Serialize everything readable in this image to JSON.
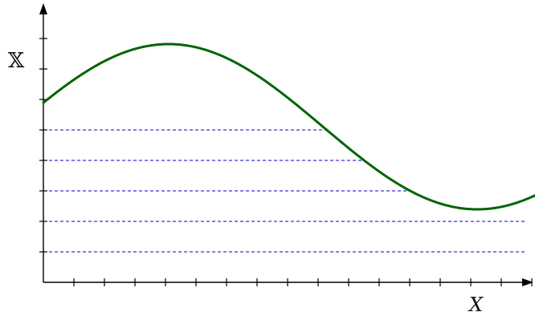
{
  "labels": {
    "y_axis": "𝕏",
    "x_axis": "X"
  },
  "colors": {
    "axis": "#000000",
    "curve": "#006400",
    "guide_lines": "#0000cc",
    "background": "#ffffff"
  },
  "diagram": {
    "curve": "sine",
    "x_tick_count": 16,
    "y_tick_count": 8,
    "horizontal_guide_count": 5,
    "guide_style": "dashed"
  }
}
